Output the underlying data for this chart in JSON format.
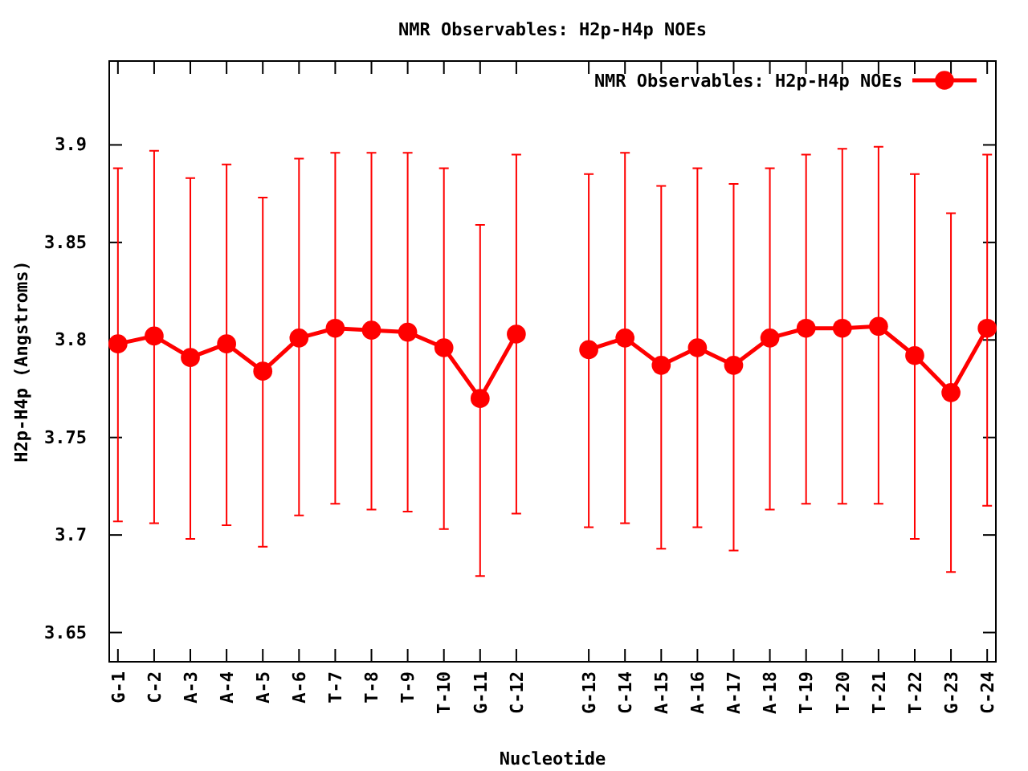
{
  "chart_data": {
    "type": "line",
    "title": "NMR Observables: H2p-H4p NOEs",
    "xlabel": "Nucleotide",
    "ylabel": "H2p-H4p (Angstroms)",
    "categories": [
      "G-1",
      "C-2",
      "A-3",
      "A-4",
      "A-5",
      "A-6",
      "T-7",
      "T-8",
      "T-9",
      "T-10",
      "G-11",
      "C-12",
      null,
      "G-13",
      "C-14",
      "A-15",
      "A-16",
      "A-17",
      "A-18",
      "T-19",
      "T-20",
      "T-21",
      "T-22",
      "G-23",
      "C-24"
    ],
    "series": [
      {
        "name": "NMR Observables: H2p-H4p NOEs",
        "color": "#ff0000",
        "values": [
          3.798,
          3.802,
          3.791,
          3.798,
          3.784,
          3.801,
          3.806,
          3.805,
          3.804,
          3.796,
          3.77,
          3.803,
          null,
          3.795,
          3.801,
          3.787,
          3.796,
          3.787,
          3.801,
          3.806,
          3.806,
          3.807,
          3.792,
          3.773,
          3.806
        ],
        "errors": [
          [
            3.707,
            3.888
          ],
          [
            3.706,
            3.897
          ],
          [
            3.698,
            3.883
          ],
          [
            3.705,
            3.89
          ],
          [
            3.694,
            3.873
          ],
          [
            3.71,
            3.893
          ],
          [
            3.716,
            3.896
          ],
          [
            3.713,
            3.896
          ],
          [
            3.712,
            3.896
          ],
          [
            3.703,
            3.888
          ],
          [
            3.679,
            3.859
          ],
          [
            3.711,
            3.895
          ],
          null,
          [
            3.704,
            3.885
          ],
          [
            3.706,
            3.896
          ],
          [
            3.693,
            3.879
          ],
          [
            3.704,
            3.888
          ],
          [
            3.692,
            3.88
          ],
          [
            3.713,
            3.888
          ],
          [
            3.716,
            3.895
          ],
          [
            3.716,
            3.898
          ],
          [
            3.716,
            3.899
          ],
          [
            3.698,
            3.885
          ],
          [
            3.681,
            3.865
          ],
          [
            3.715,
            3.895
          ]
        ]
      }
    ],
    "ylim": [
      3.635,
      3.943
    ],
    "yticks": [
      3.65,
      3.7,
      3.75,
      3.8,
      3.85,
      3.9
    ],
    "marker": "circle",
    "line_style": "solid",
    "legend": "top right",
    "grid": false
  }
}
